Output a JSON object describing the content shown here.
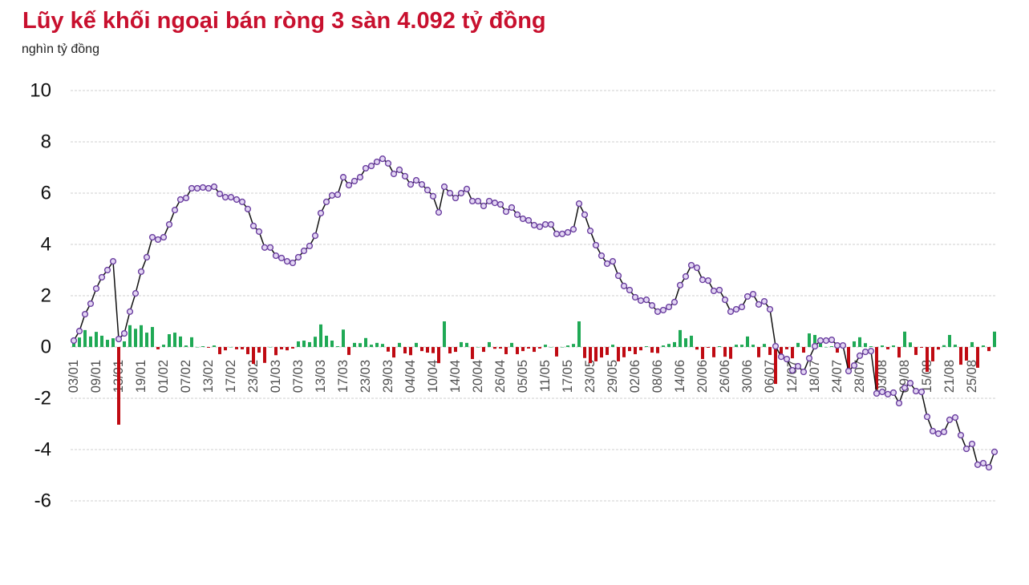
{
  "chart_data": {
    "type": "line",
    "title": "Lũy kế khối ngoại bán ròng 3 sàn 4.092 tỷ đồng",
    "ylabel": "nghìn tỷ đồng",
    "ylim": [
      -6,
      10
    ],
    "y_tick_labels": [
      "10",
      "8",
      "6",
      "4",
      "2",
      "0",
      "-2",
      "-4",
      "-6"
    ],
    "x_tick_labels": [
      "03/01",
      "09/01",
      "13/01",
      "19/01",
      "01/02",
      "07/02",
      "13/02",
      "17/02",
      "23/02",
      "01/03",
      "07/03",
      "13/03",
      "17/03",
      "23/03",
      "29/03",
      "04/04",
      "10/04",
      "14/04",
      "20/04",
      "26/04",
      "05/05",
      "11/05",
      "17/05",
      "23/05",
      "29/05",
      "02/06",
      "08/06",
      "14/06",
      "20/06",
      "26/06",
      "30/06",
      "06/07",
      "12/07",
      "18/07",
      "24/07",
      "28/07",
      "03/08",
      "09/08",
      "15/08",
      "21/08",
      "25/08"
    ],
    "grid": true,
    "legend": "none",
    "series": [
      {
        "type": "bar",
        "values": [
          0.25,
          0.37,
          0.66,
          0.41,
          0.59,
          0.44,
          0.28,
          0.34,
          -3.03,
          0.22,
          0.85,
          0.71,
          0.85,
          0.56,
          0.78,
          -0.09,
          0.09,
          0.5,
          0.56,
          0.41,
          0.06,
          0.38,
          0.0,
          0.03,
          -0.03,
          0.06,
          -0.28,
          -0.13,
          0.0,
          -0.09,
          -0.09,
          -0.28,
          -0.66,
          -0.22,
          -0.62,
          0.0,
          -0.32,
          -0.09,
          -0.13,
          -0.06,
          0.22,
          0.25,
          0.19,
          0.4,
          0.88,
          0.44,
          0.25,
          0.03,
          0.68,
          -0.31,
          0.16,
          0.15,
          0.35,
          0.09,
          0.16,
          0.12,
          -0.18,
          -0.41,
          0.16,
          -0.25,
          -0.32,
          0.16,
          -0.16,
          -0.22,
          -0.24,
          -0.63,
          1.0,
          -0.25,
          -0.19,
          0.19,
          0.16,
          -0.47,
          0.0,
          -0.19,
          0.19,
          -0.07,
          -0.06,
          -0.28,
          0.16,
          -0.28,
          -0.16,
          -0.06,
          -0.19,
          -0.06,
          0.09,
          0.0,
          -0.37,
          0.0,
          0.06,
          0.12,
          1.0,
          -0.43,
          -0.63,
          -0.56,
          -0.41,
          -0.31,
          0.09,
          -0.56,
          -0.4,
          -0.16,
          -0.28,
          -0.13,
          0.03,
          -0.22,
          -0.24,
          0.06,
          0.12,
          0.19,
          0.66,
          0.34,
          0.44,
          -0.1,
          -0.47,
          -0.03,
          -0.4,
          0.03,
          -0.38,
          -0.46,
          0.09,
          0.09,
          0.41,
          0.09,
          -0.4,
          0.12,
          -0.31,
          -1.44,
          -0.41,
          -0.09,
          -0.44,
          0.16,
          -0.22,
          0.53,
          0.47,
          0.22,
          0.0,
          0.03,
          -0.22,
          0.0,
          -1.0,
          0.22,
          0.38,
          0.15,
          0.03,
          -1.65,
          0.06,
          -0.09,
          0.06,
          -0.41,
          0.6,
          0.18,
          -0.31,
          -0.03,
          -0.97,
          -0.56,
          -0.1,
          0.07,
          0.47,
          0.09,
          -0.69,
          -0.53,
          0.19,
          -0.81,
          0.06,
          -0.16,
          0.6
        ]
      },
      {
        "type": "line",
        "values": [
          0.25,
          0.62,
          1.28,
          1.69,
          2.28,
          2.72,
          3.0,
          3.34,
          0.31,
          0.53,
          1.38,
          2.09,
          2.94,
          3.5,
          4.28,
          4.19,
          4.28,
          4.78,
          5.34,
          5.75,
          5.81,
          6.19,
          6.19,
          6.22,
          6.19,
          6.25,
          5.97,
          5.84,
          5.84,
          5.75,
          5.66,
          5.38,
          4.72,
          4.5,
          3.88,
          3.88,
          3.56,
          3.47,
          3.34,
          3.28,
          3.5,
          3.75,
          3.94,
          4.34,
          5.22,
          5.66,
          5.91,
          5.94,
          6.62,
          6.31,
          6.47,
          6.62,
          6.97,
          7.06,
          7.22,
          7.34,
          7.16,
          6.75,
          6.91,
          6.66,
          6.34,
          6.5,
          6.34,
          6.12,
          5.88,
          5.25,
          6.25,
          6.0,
          5.81,
          6.0,
          6.16,
          5.69,
          5.69,
          5.5,
          5.69,
          5.62,
          5.56,
          5.28,
          5.44,
          5.16,
          5.0,
          4.94,
          4.75,
          4.69,
          4.78,
          4.78,
          4.41,
          4.41,
          4.47,
          4.59,
          5.59,
          5.16,
          4.53,
          3.97,
          3.56,
          3.25,
          3.34,
          2.78,
          2.38,
          2.22,
          1.94,
          1.81,
          1.84,
          1.62,
          1.38,
          1.44,
          1.56,
          1.75,
          2.41,
          2.75,
          3.19,
          3.09,
          2.62,
          2.59,
          2.19,
          2.22,
          1.84,
          1.38,
          1.47,
          1.56,
          1.97,
          2.06,
          1.66,
          1.78,
          1.47,
          0.03,
          -0.38,
          -0.47,
          -0.91,
          -0.75,
          -0.97,
          -0.44,
          0.03,
          0.25,
          0.25,
          0.28,
          0.06,
          0.06,
          -0.94,
          -0.72,
          -0.34,
          -0.19,
          -0.16,
          -1.81,
          -1.75,
          -1.84,
          -1.78,
          -2.19,
          -1.59,
          -1.41,
          -1.72,
          -1.75,
          -2.72,
          -3.28,
          -3.38,
          -3.31,
          -2.84,
          -2.75,
          -3.44,
          -3.97,
          -3.78,
          -4.59,
          -4.53,
          -4.69,
          -4.09
        ]
      }
    ]
  },
  "colors": {
    "title": "#c8102e",
    "bar_positive": "#1fa955",
    "bar_negative": "#bf0a12",
    "line": "#111111",
    "marker_stroke": "#6b3fa0",
    "marker_fill": "#e3d6f3",
    "grid": "#cfcfcf"
  }
}
